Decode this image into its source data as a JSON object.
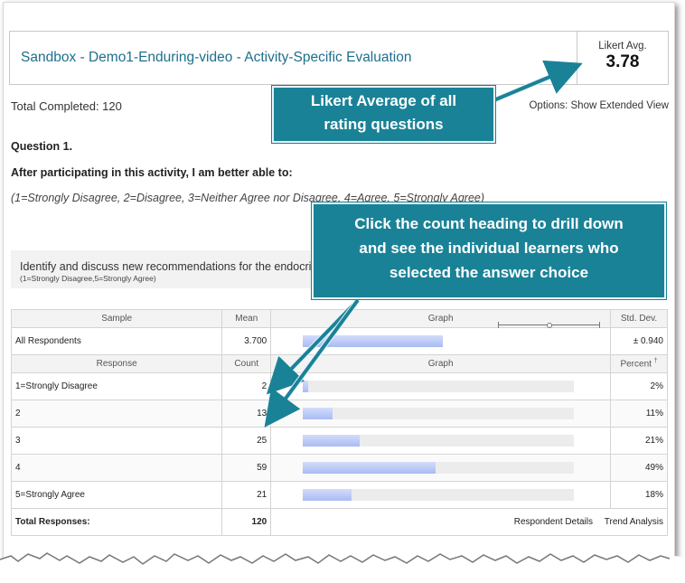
{
  "header": {
    "title": "Sandbox - Demo1-Enduring-video - Activity-Specific Evaluation",
    "likert_label": "Likert Avg.",
    "likert_value": "3.78"
  },
  "summary": {
    "total_completed": "Total Completed: 120",
    "options_label": "Options:",
    "options_link": "Show Extended View"
  },
  "question": {
    "number": "Question 1.",
    "text": "After participating in this activity, I am better able to:",
    "scale": "(1=Strongly Disagree, 2=Disagree, 3=Neither Agree nor Disagree, 4=Agree, 5=Strongly Agree)"
  },
  "item": {
    "text": "Identify and discuss new recommendations for the endocrine",
    "scale": "(1=Strongly Disagree,5=Strongly Agree)"
  },
  "table": {
    "sample_headers": [
      "Sample",
      "Mean",
      "Graph",
      "Std. Dev."
    ],
    "sample_row": {
      "name": "All Respondents",
      "mean": "3.700",
      "mean_value": 3.7,
      "std_dev": "± 0.940",
      "std_value": 0.94
    },
    "response_headers": [
      "Response",
      "Count",
      "Graph",
      "Percent"
    ],
    "percent_dagger": "†",
    "responses": [
      {
        "label": "1=Strongly Disagree",
        "count": "2",
        "percent": "2%",
        "pct_value": 2
      },
      {
        "label": "2",
        "count": "13",
        "percent": "11%",
        "pct_value": 11
      },
      {
        "label": "3",
        "count": "25",
        "percent": "21%",
        "pct_value": 21
      },
      {
        "label": "4",
        "count": "59",
        "percent": "49%",
        "pct_value": 49
      },
      {
        "label": "5=Strongly Agree",
        "count": "21",
        "percent": "18%",
        "pct_value": 18
      }
    ],
    "total_label": "Total Responses:",
    "total_count": "120",
    "link_respondents": "Respondent Details",
    "link_trend": "Trend Analysis"
  },
  "callouts": {
    "likert_line1": "Likert Average of all",
    "likert_line2": "rating questions",
    "drill_line1": "Click the count heading to drill down",
    "drill_line2": "and see the individual learners who",
    "drill_line3": "selected the answer choice"
  },
  "colors": {
    "title": "#1d6f8b",
    "callout": "#1a8297",
    "bar": "#a9bbf3"
  }
}
